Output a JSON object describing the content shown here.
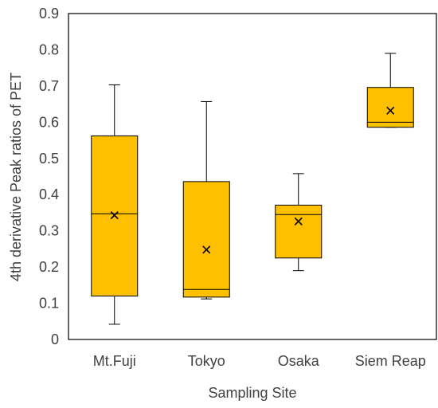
{
  "chart_data": {
    "type": "box",
    "title": "",
    "xlabel": "Sampling Site",
    "ylabel": "4th derivative Peak ratios of PET",
    "ylim": [
      0,
      0.9
    ],
    "yticks": [
      0,
      0.1,
      0.2,
      0.3,
      0.4,
      0.5,
      0.6,
      0.7,
      0.8,
      0.9
    ],
    "ytick_labels": [
      "0",
      "0.1",
      "0.2",
      "0.3",
      "0.4",
      "0.5",
      "0.6",
      "0.7",
      "0.8",
      "0.9"
    ],
    "grid": false,
    "box_color": "#FFC000",
    "categories": [
      "Mt.Fuji",
      "Tokyo",
      "Osaka",
      "Siem Reap"
    ],
    "boxes": [
      {
        "min": 0.042,
        "q1": 0.12,
        "median": 0.347,
        "q3": 0.562,
        "max": 0.703,
        "mean": 0.343
      },
      {
        "min": 0.112,
        "q1": 0.117,
        "median": 0.138,
        "q3": 0.436,
        "max": 0.657,
        "mean": 0.248
      },
      {
        "min": 0.19,
        "q1": 0.225,
        "median": 0.345,
        "q3": 0.371,
        "max": 0.458,
        "mean": 0.326
      },
      {
        "min": 0.586,
        "q1": 0.586,
        "median": 0.6,
        "q3": 0.696,
        "max": 0.79,
        "mean": 0.632
      }
    ]
  }
}
